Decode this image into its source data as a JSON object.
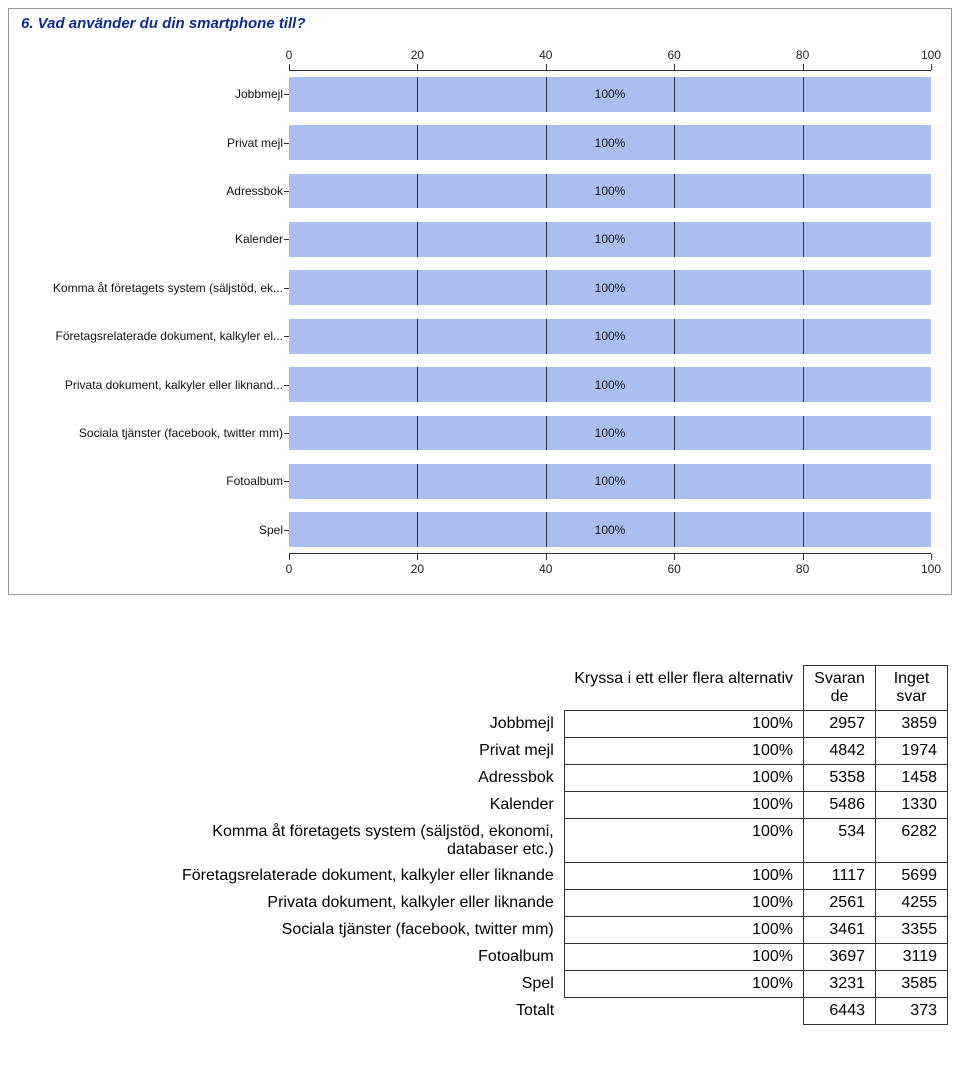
{
  "chart": {
    "title": "6. Vad använder du din smartphone till?",
    "type": "bar-horizontal",
    "categories": [
      "Jobbmejl",
      "Privat mejl",
      "Adressbok",
      "Kalender",
      "Komma åt företagets system (säljstöd, ek...",
      "Företagsrelaterade dokument, kalkyler el...",
      "Privata dokument, kalkyler eller liknand...",
      "Sociala tjänster (facebook, twitter mm)",
      "Fotoalbum",
      "Spel"
    ],
    "values": [
      100,
      100,
      100,
      100,
      100,
      100,
      100,
      100,
      100,
      100
    ],
    "value_labels": [
      "100%",
      "100%",
      "100%",
      "100%",
      "100%",
      "100%",
      "100%",
      "100%",
      "100%",
      "100%"
    ],
    "xlim": [
      0,
      100
    ],
    "xticks": [
      0,
      20,
      40,
      60,
      80,
      100
    ],
    "bar_color": "#aabef0",
    "axis_color": "#333333",
    "background_color": "#ffffff",
    "title_color": "#0b2e8a",
    "label_fontsize": 12,
    "bar_fill_ratio": 0.72,
    "show_internal_dividers_at": [
      20,
      40,
      60,
      80
    ]
  },
  "table": {
    "caption": "Kryssa i ett eller flera alternativ",
    "columns": [
      "Svaran de",
      "Inget svar"
    ],
    "rows": [
      {
        "label": "Jobbmejl",
        "pct": "100%",
        "a": "2957",
        "b": "3859"
      },
      {
        "label": "Privat mejl",
        "pct": "100%",
        "a": "4842",
        "b": "1974"
      },
      {
        "label": "Adressbok",
        "pct": "100%",
        "a": "5358",
        "b": "1458"
      },
      {
        "label": "Kalender",
        "pct": "100%",
        "a": "5486",
        "b": "1330"
      },
      {
        "label": "Komma åt företagets system (säljstöd, ekonomi, databaser etc.)",
        "pct": "100%",
        "a": "534",
        "b": "6282"
      },
      {
        "label": "Företagsrelaterade dokument, kalkyler eller liknande",
        "pct": "100%",
        "a": "1117",
        "b": "5699"
      },
      {
        "label": "Privata dokument, kalkyler eller liknande",
        "pct": "100%",
        "a": "2561",
        "b": "4255"
      },
      {
        "label": "Sociala tjänster (facebook, twitter mm)",
        "pct": "100%",
        "a": "3461",
        "b": "3355"
      },
      {
        "label": "Fotoalbum",
        "pct": "100%",
        "a": "3697",
        "b": "3119"
      },
      {
        "label": "Spel",
        "pct": "100%",
        "a": "3231",
        "b": "3585"
      }
    ],
    "total_label": "Totalt",
    "total_a": "6443",
    "total_b": "373"
  }
}
